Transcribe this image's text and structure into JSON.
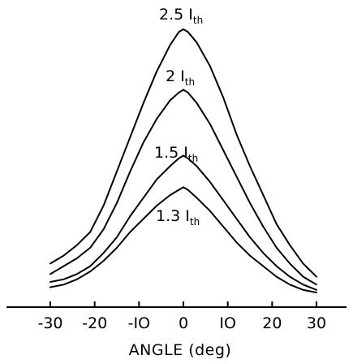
{
  "chart_data": {
    "type": "line",
    "title": "",
    "xlabel": "ANGLE (deg)",
    "ylabel": "",
    "xlim": [
      -30,
      30
    ],
    "x_ticks": [
      -30,
      -20,
      -10,
      0,
      10,
      20,
      30
    ],
    "x_tick_labels": [
      "-30",
      "-20",
      "-IO",
      "0",
      "IO",
      "20",
      "30"
    ],
    "grid": false,
    "series": [
      {
        "label_main": "2.5",
        "label_sub": "th",
        "label_prefix": "I",
        "label_text": "2.5Ith",
        "x": [
          -30,
          -27,
          -24,
          -21,
          -18,
          -15,
          -12,
          -9,
          -6,
          -3,
          -1,
          0,
          1,
          3,
          6,
          9,
          12,
          15,
          18,
          21,
          24,
          27,
          30
        ],
        "y": [
          0.11,
          0.14,
          0.18,
          0.23,
          0.33,
          0.46,
          0.59,
          0.72,
          0.84,
          0.94,
          0.99,
          1.0,
          0.99,
          0.95,
          0.86,
          0.74,
          0.6,
          0.48,
          0.37,
          0.26,
          0.18,
          0.11,
          0.06
        ]
      },
      {
        "label_main": "2",
        "label_sub": "th",
        "label_prefix": "I",
        "label_text": "2Ith",
        "x": [
          -30,
          -27,
          -24,
          -21,
          -18,
          -15,
          -12,
          -9,
          -6,
          -3,
          -1,
          0,
          1,
          3,
          6,
          9,
          12,
          15,
          18,
          21,
          24,
          27,
          30
        ],
        "y": [
          0.07,
          0.1,
          0.13,
          0.17,
          0.24,
          0.34,
          0.46,
          0.57,
          0.66,
          0.73,
          0.76,
          0.77,
          0.76,
          0.72,
          0.64,
          0.54,
          0.44,
          0.34,
          0.25,
          0.17,
          0.11,
          0.06,
          0.03
        ]
      },
      {
        "label_main": "1.5",
        "label_sub": "th",
        "label_prefix": "I",
        "label_text": "1.5Ith",
        "x": [
          -30,
          -27,
          -24,
          -21,
          -18,
          -15,
          -12,
          -9,
          -6,
          -3,
          -1,
          0,
          1,
          3,
          6,
          9,
          12,
          15,
          18,
          21,
          24,
          27,
          30
        ],
        "y": [
          0.04,
          0.05,
          0.07,
          0.1,
          0.15,
          0.21,
          0.29,
          0.36,
          0.43,
          0.48,
          0.51,
          0.52,
          0.51,
          0.48,
          0.42,
          0.35,
          0.28,
          0.21,
          0.15,
          0.1,
          0.06,
          0.03,
          0.01
        ]
      },
      {
        "label_main": "1.3",
        "label_sub": "th",
        "label_prefix": "I",
        "label_text": "1.3Ith",
        "x": [
          -30,
          -27,
          -24,
          -21,
          -18,
          -15,
          -12,
          -9,
          -6,
          -3,
          -1,
          0,
          1,
          3,
          6,
          9,
          12,
          15,
          18,
          21,
          24,
          27,
          30
        ],
        "y": [
          0.02,
          0.03,
          0.05,
          0.08,
          0.12,
          0.17,
          0.23,
          0.28,
          0.33,
          0.37,
          0.39,
          0.4,
          0.39,
          0.36,
          0.31,
          0.25,
          0.19,
          0.14,
          0.1,
          0.06,
          0.03,
          0.01,
          0.0
        ]
      }
    ]
  }
}
